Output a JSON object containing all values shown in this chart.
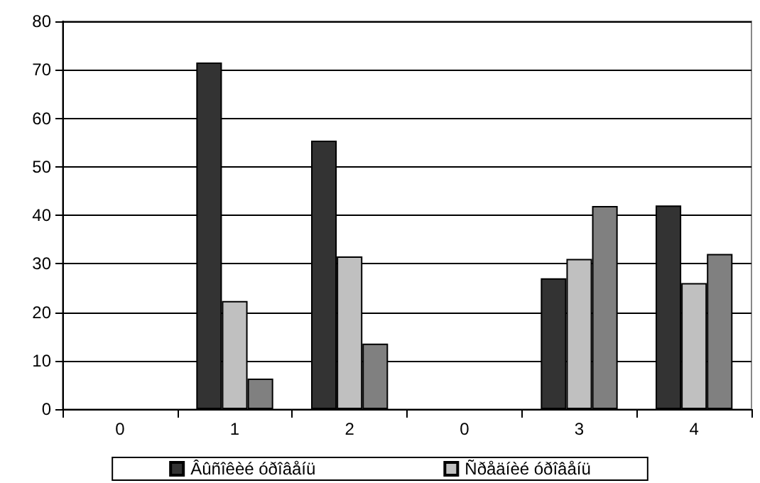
{
  "chart_data": {
    "type": "bar",
    "categories": [
      "0",
      "1",
      "2",
      "0",
      "3",
      "4"
    ],
    "series": [
      {
        "name": "Âûñîêèé óðîâåíü",
        "color": "#333333",
        "values": [
          null,
          71.5,
          55.4,
          null,
          27,
          42
        ]
      },
      {
        "name": "Ñðåäíèé óðîâåíü",
        "color": "#c0c0c0",
        "values": [
          null,
          22.3,
          31.5,
          null,
          31,
          26
        ]
      },
      {
        "color": "#808080",
        "values": [
          null,
          6.3,
          13.5,
          null,
          41.9,
          32
        ]
      }
    ],
    "ylim": [
      0,
      80
    ],
    "yticks": [
      0,
      10,
      20,
      30,
      40,
      50,
      60,
      70,
      80
    ],
    "grid": "y",
    "legend": "bottom"
  }
}
